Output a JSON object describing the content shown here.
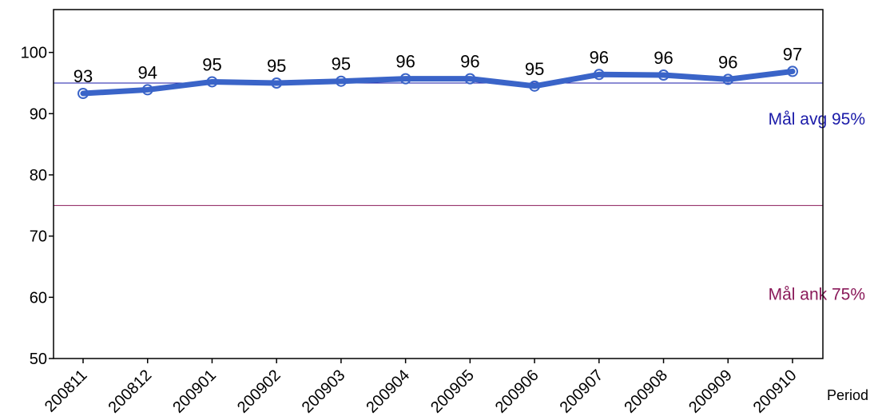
{
  "chart_data": {
    "type": "line",
    "title": "",
    "xlabel": "Period",
    "ylabel": "",
    "ylim": [
      50,
      107
    ],
    "yticks": [
      50,
      60,
      70,
      80,
      90,
      100
    ],
    "grid": false,
    "categories": [
      "200811",
      "200812",
      "200901",
      "200902",
      "200903",
      "200904",
      "200905",
      "200906",
      "200907",
      "200908",
      "200909",
      "200910"
    ],
    "series": [
      {
        "name": "",
        "values": [
          93.3,
          93.9,
          95.2,
          95.0,
          95.3,
          95.7,
          95.7,
          94.5,
          96.4,
          96.3,
          95.6,
          96.9
        ],
        "labels": [
          "93",
          "94",
          "95",
          "95",
          "95",
          "96",
          "96",
          "95",
          "96",
          "96",
          "96",
          "97"
        ],
        "color": "#3a64c8"
      }
    ],
    "targets": [
      {
        "value": 95,
        "label": "Mål avg 95%",
        "color": "#1a1aa8"
      },
      {
        "value": 75,
        "label": "Mål ank 75%",
        "color": "#8a1a5a"
      }
    ]
  }
}
